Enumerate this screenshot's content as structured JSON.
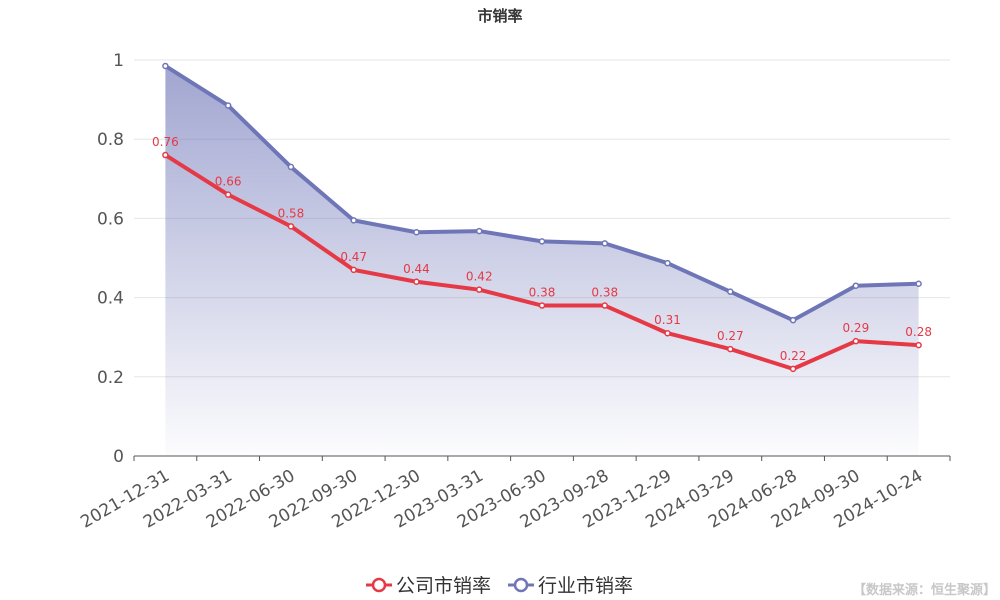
{
  "chart_data": {
    "type": "line",
    "title": "市销率",
    "xlabel": "",
    "ylabel": "",
    "ylim": [
      0,
      1
    ],
    "yticks": [
      "0",
      "0.2",
      "0.4",
      "0.6",
      "0.8",
      "1"
    ],
    "categories": [
      "2021-12-31",
      "2022-03-31",
      "2022-06-30",
      "2022-09-30",
      "2022-12-30",
      "2023-03-31",
      "2023-06-30",
      "2023-09-28",
      "2023-12-29",
      "2024-03-29",
      "2024-06-28",
      "2024-09-30",
      "2024-10-24"
    ],
    "series": [
      {
        "name": "公司市销率",
        "color": "#e63946",
        "values": [
          0.76,
          0.66,
          0.58,
          0.47,
          0.44,
          0.42,
          0.38,
          0.38,
          0.31,
          0.27,
          0.22,
          0.29,
          0.28
        ],
        "labels": [
          "0.76",
          "0.66",
          "0.58",
          "0.47",
          "0.44",
          "0.42",
          "0.38",
          "0.38",
          "0.31",
          "0.27",
          "0.22",
          "0.29",
          "0.28"
        ]
      },
      {
        "name": "行业市销率",
        "color": "#6f76b8",
        "values": [
          0.985,
          0.885,
          0.73,
          0.595,
          0.565,
          0.568,
          0.542,
          0.537,
          0.487,
          0.415,
          0.343,
          0.43,
          0.435
        ],
        "area": true
      }
    ],
    "grid": true,
    "legend_position": "bottom-center"
  },
  "source_text": "【数据来源：恒生聚源】"
}
